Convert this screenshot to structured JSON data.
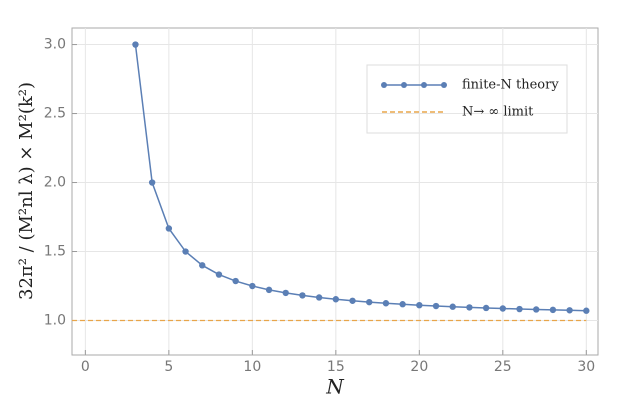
{
  "chart_data": {
    "type": "line",
    "xlabel": "N",
    "ylabel": "32π² / (M²nl λ) × M²(k²)",
    "xlim": [
      -0.8,
      30.7
    ],
    "ylim": [
      0.75,
      3.12
    ],
    "xticks": [
      0,
      5,
      10,
      15,
      20,
      25,
      30
    ],
    "yticks": [
      {
        "value": 1,
        "label": "1.0"
      },
      {
        "value": 1.5,
        "label": "1.5"
      },
      {
        "value": 2,
        "label": "2.0"
      },
      {
        "value": 2.5,
        "label": "2.5"
      },
      {
        "value": 3,
        "label": "3.0"
      }
    ],
    "grid": true,
    "legend": "upper right",
    "series": [
      {
        "name": "finite-N theory",
        "color": "#5b7fb5",
        "x": [
          3,
          4,
          5,
          6,
          7,
          8,
          9,
          10,
          11,
          12,
          13,
          14,
          15,
          16,
          17,
          18,
          19,
          20,
          21,
          22,
          23,
          24,
          25,
          26,
          27,
          28,
          29,
          30
        ],
        "values": [
          3.0,
          2.0,
          1.667,
          1.5,
          1.4,
          1.333,
          1.286,
          1.25,
          1.222,
          1.2,
          1.182,
          1.167,
          1.154,
          1.143,
          1.133,
          1.125,
          1.118,
          1.111,
          1.105,
          1.1,
          1.095,
          1.091,
          1.087,
          1.083,
          1.08,
          1.077,
          1.074,
          1.071
        ]
      }
    ],
    "hlines": [
      {
        "name": "N→ ∞ limit",
        "color": "#e8a54a",
        "value": 1
      }
    ]
  }
}
